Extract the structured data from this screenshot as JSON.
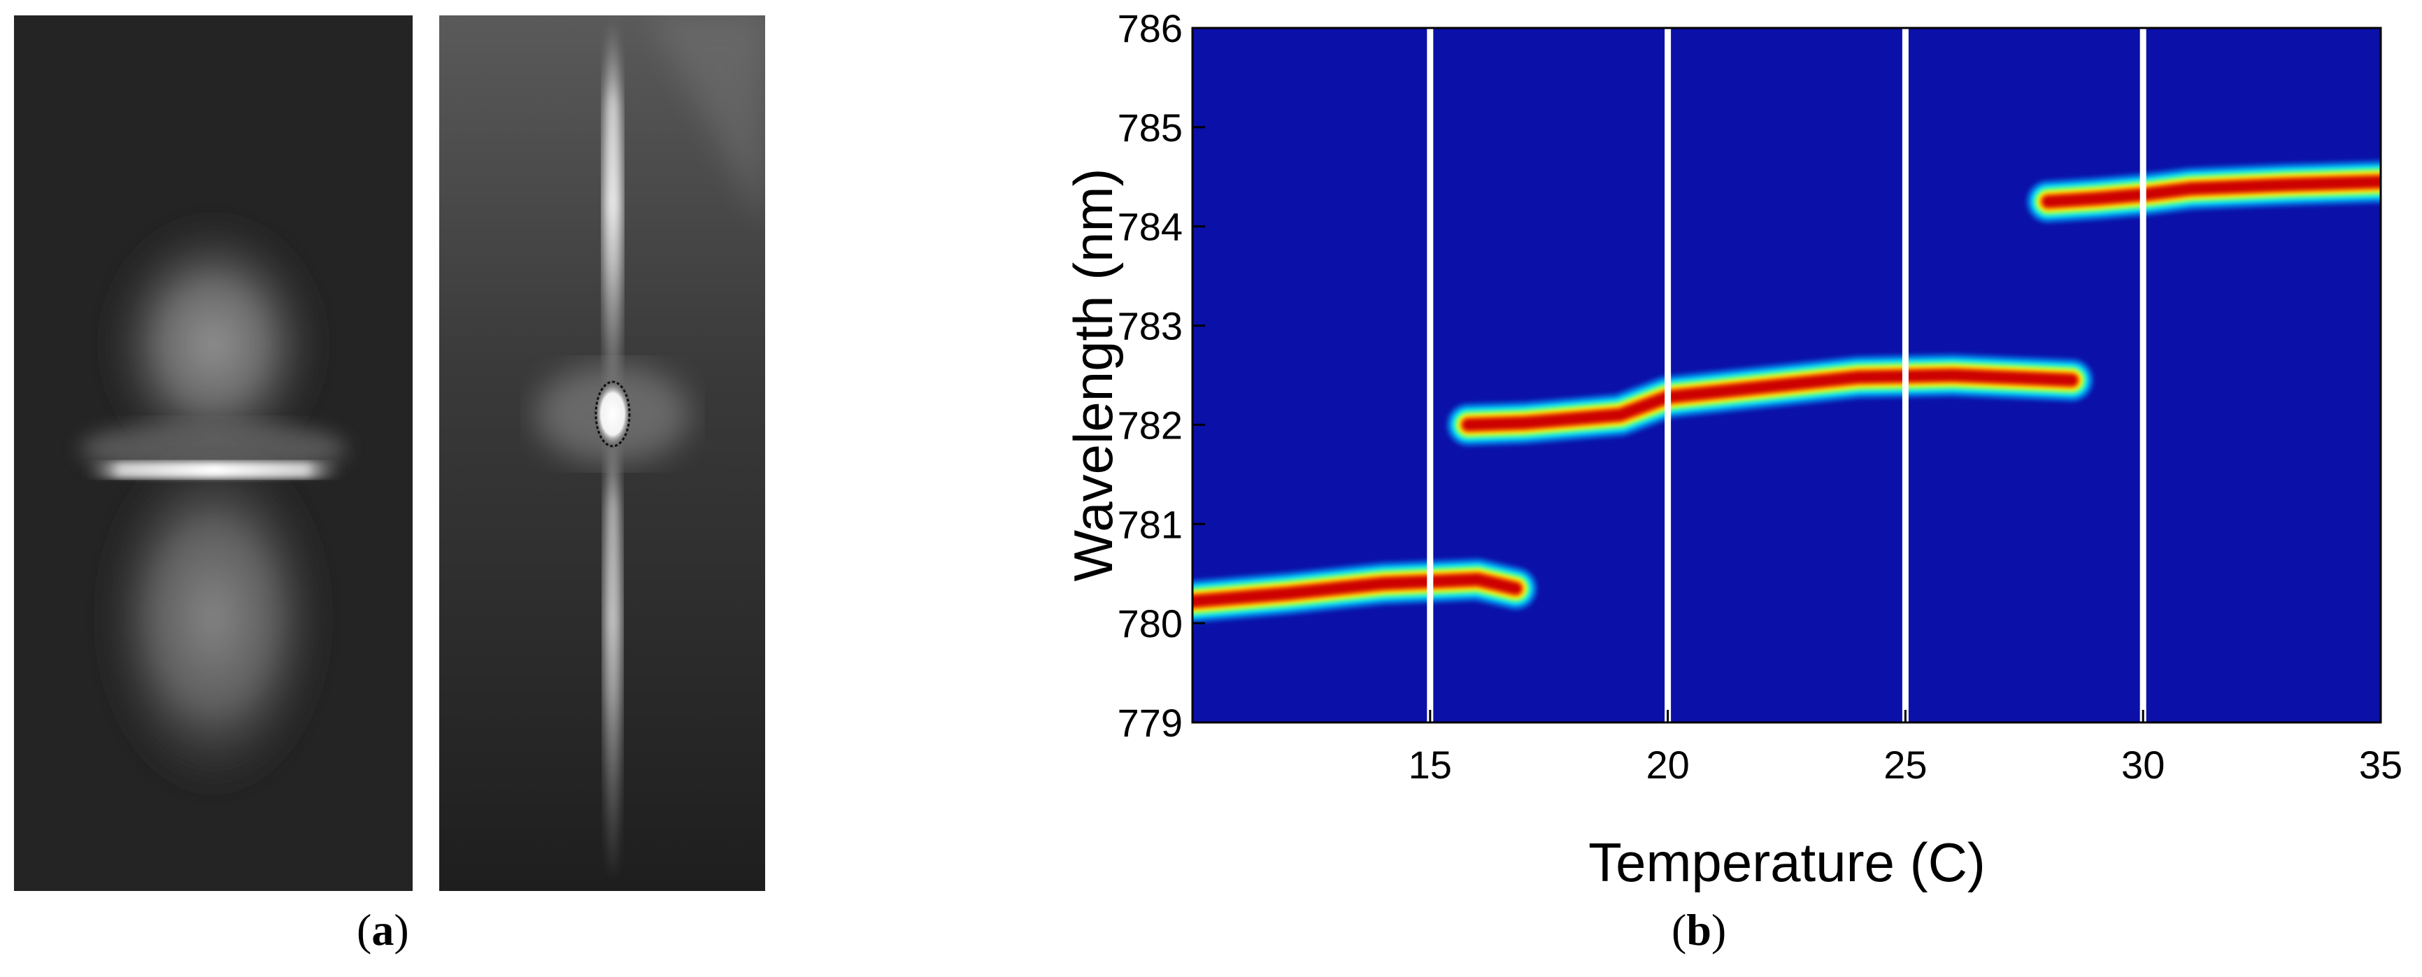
{
  "panels": {
    "a": {
      "open": "(",
      "letter": "a",
      "close": ")"
    },
    "b": {
      "open": "(",
      "letter": "b",
      "close": ")"
    }
  },
  "colors": {
    "heatmap_background": "#0a10a8",
    "ridge_core": "#cc0000",
    "marker_lines": "#ffffff"
  },
  "chart_data": {
    "type": "heatmap",
    "xlabel": "Temperature (C)",
    "ylabel": "Wavelength (nm)",
    "xlim": [
      10,
      35
    ],
    "ylim": [
      779,
      786
    ],
    "x_ticks": [
      15,
      20,
      25,
      30,
      35
    ],
    "y_ticks": [
      779,
      780,
      781,
      782,
      783,
      784,
      785,
      786
    ],
    "colormap": "jet",
    "vertical_marker_lines": [
      15,
      20,
      25,
      30
    ],
    "grid": false,
    "series": [
      {
        "ridge": [
          [
            10,
            780.22
          ],
          [
            12,
            780.3
          ],
          [
            14,
            780.4
          ],
          [
            16,
            780.44
          ],
          [
            16.8,
            780.35
          ]
        ]
      },
      {
        "ridge": [
          [
            15.8,
            782.0
          ],
          [
            17,
            782.02
          ],
          [
            19,
            782.1
          ],
          [
            20,
            782.28
          ],
          [
            22,
            782.38
          ],
          [
            24,
            782.48
          ],
          [
            26,
            782.5
          ],
          [
            28.5,
            782.45
          ]
        ]
      },
      {
        "ridge": [
          [
            28,
            784.25
          ],
          [
            29,
            784.28
          ],
          [
            30,
            784.32
          ],
          [
            31,
            784.38
          ],
          [
            33,
            784.42
          ],
          [
            35,
            784.45
          ]
        ]
      }
    ]
  }
}
